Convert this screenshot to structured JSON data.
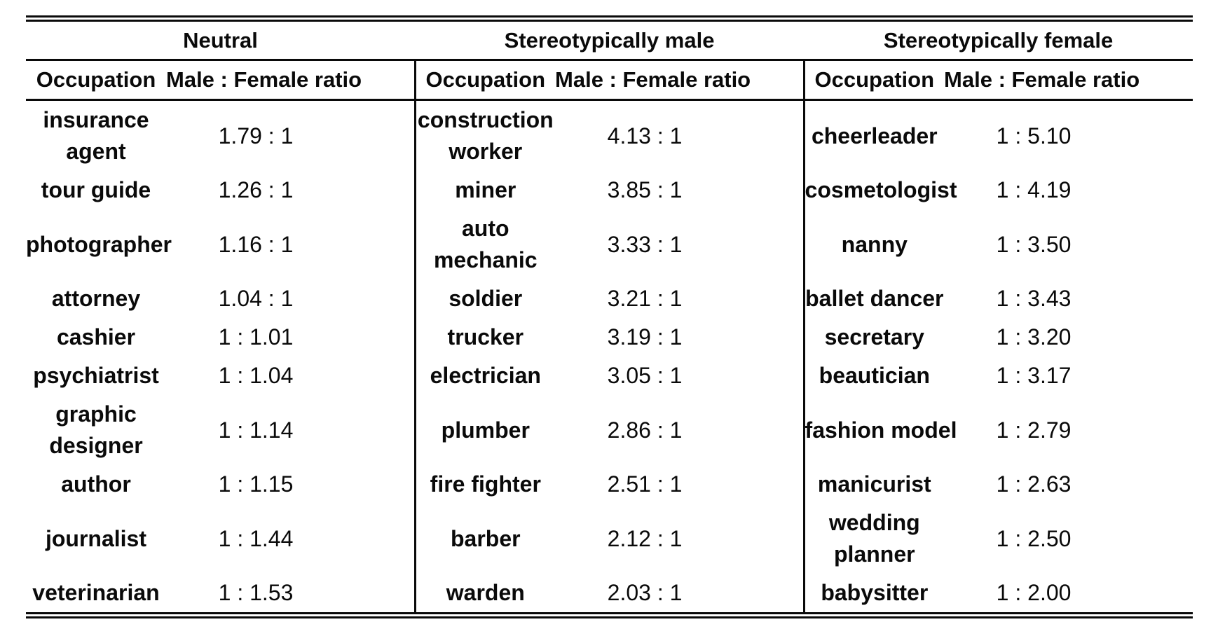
{
  "table": {
    "groups": [
      {
        "title": "Neutral",
        "col_occupation": "Occupation",
        "col_ratio": "Male : Female ratio"
      },
      {
        "title": "Stereotypically male",
        "col_occupation": "Occupation",
        "col_ratio": "Male : Female ratio"
      },
      {
        "title": "Stereotypically female",
        "col_occupation": "Occupation",
        "col_ratio": "Male : Female ratio"
      }
    ],
    "rows": [
      {
        "neutral": {
          "occupation": "insurance\nagent",
          "ratio": "1.79 : 1"
        },
        "male": {
          "occupation": "construction\nworker",
          "ratio": "4.13 : 1"
        },
        "female": {
          "occupation": "cheerleader",
          "ratio": "1 : 5.10"
        }
      },
      {
        "neutral": {
          "occupation": "tour guide",
          "ratio": "1.26 : 1"
        },
        "male": {
          "occupation": "miner",
          "ratio": "3.85 : 1"
        },
        "female": {
          "occupation": "cosmetologist",
          "ratio": "1 : 4.19"
        }
      },
      {
        "neutral": {
          "occupation": "photographer",
          "ratio": "1.16 : 1"
        },
        "male": {
          "occupation": "auto\nmechanic",
          "ratio": "3.33 : 1"
        },
        "female": {
          "occupation": "nanny",
          "ratio": "1 : 3.50"
        }
      },
      {
        "neutral": {
          "occupation": "attorney",
          "ratio": "1.04 : 1"
        },
        "male": {
          "occupation": "soldier",
          "ratio": "3.21 : 1"
        },
        "female": {
          "occupation": "ballet dancer",
          "ratio": "1 : 3.43"
        }
      },
      {
        "neutral": {
          "occupation": "cashier",
          "ratio": "1 : 1.01"
        },
        "male": {
          "occupation": "trucker",
          "ratio": "3.19 : 1"
        },
        "female": {
          "occupation": "secretary",
          "ratio": "1 : 3.20"
        }
      },
      {
        "neutral": {
          "occupation": "psychiatrist",
          "ratio": "1 : 1.04"
        },
        "male": {
          "occupation": "electrician",
          "ratio": "3.05 : 1"
        },
        "female": {
          "occupation": "beautician",
          "ratio": "1 : 3.17"
        }
      },
      {
        "neutral": {
          "occupation": "graphic\ndesigner",
          "ratio": "1 : 1.14"
        },
        "male": {
          "occupation": "plumber",
          "ratio": "2.86 : 1"
        },
        "female": {
          "occupation": "fashion model",
          "ratio": "1 : 2.79"
        }
      },
      {
        "neutral": {
          "occupation": "author",
          "ratio": "1 : 1.15"
        },
        "male": {
          "occupation": "fire fighter",
          "ratio": "2.51 : 1"
        },
        "female": {
          "occupation": "manicurist",
          "ratio": "1 : 2.63"
        }
      },
      {
        "neutral": {
          "occupation": "journalist",
          "ratio": "1 : 1.44"
        },
        "male": {
          "occupation": "barber",
          "ratio": "2.12 : 1"
        },
        "female": {
          "occupation": "wedding\nplanner",
          "ratio": "1 : 2.50"
        }
      },
      {
        "neutral": {
          "occupation": "veterinarian",
          "ratio": "1 : 1.53"
        },
        "male": {
          "occupation": "warden",
          "ratio": "2.03 : 1"
        },
        "female": {
          "occupation": "babysitter",
          "ratio": "1 : 2.00"
        }
      }
    ]
  },
  "chart_data": {
    "type": "table",
    "groups": [
      {
        "name": "Neutral",
        "columns": [
          "Occupation",
          "Male : Female ratio"
        ],
        "rows": [
          [
            "insurance agent",
            "1.79 : 1"
          ],
          [
            "tour guide",
            "1.26 : 1"
          ],
          [
            "photographer",
            "1.16 : 1"
          ],
          [
            "attorney",
            "1.04 : 1"
          ],
          [
            "cashier",
            "1 : 1.01"
          ],
          [
            "psychiatrist",
            "1 : 1.04"
          ],
          [
            "graphic designer",
            "1 : 1.14"
          ],
          [
            "author",
            "1 : 1.15"
          ],
          [
            "journalist",
            "1 : 1.44"
          ],
          [
            "veterinarian",
            "1 : 1.53"
          ]
        ]
      },
      {
        "name": "Stereotypically male",
        "columns": [
          "Occupation",
          "Male : Female ratio"
        ],
        "rows": [
          [
            "construction worker",
            "4.13 : 1"
          ],
          [
            "miner",
            "3.85 : 1"
          ],
          [
            "auto mechanic",
            "3.33 : 1"
          ],
          [
            "soldier",
            "3.21 : 1"
          ],
          [
            "trucker",
            "3.19 : 1"
          ],
          [
            "electrician",
            "3.05 : 1"
          ],
          [
            "plumber",
            "2.86 : 1"
          ],
          [
            "fire fighter",
            "2.51 : 1"
          ],
          [
            "barber",
            "2.12 : 1"
          ],
          [
            "warden",
            "2.03 : 1"
          ]
        ]
      },
      {
        "name": "Stereotypically female",
        "columns": [
          "Occupation",
          "Male : Female ratio"
        ],
        "rows": [
          [
            "cheerleader",
            "1 : 5.10"
          ],
          [
            "cosmetologist",
            "1 : 4.19"
          ],
          [
            "nanny",
            "1 : 3.50"
          ],
          [
            "ballet dancer",
            "1 : 3.43"
          ],
          [
            "secretary",
            "1 : 3.20"
          ],
          [
            "beautician",
            "1 : 3.17"
          ],
          [
            "fashion model",
            "1 : 2.79"
          ],
          [
            "manicurist",
            "1 : 2.63"
          ],
          [
            "wedding planner",
            "1 : 2.50"
          ],
          [
            "babysitter",
            "1 : 2.00"
          ]
        ]
      }
    ]
  }
}
